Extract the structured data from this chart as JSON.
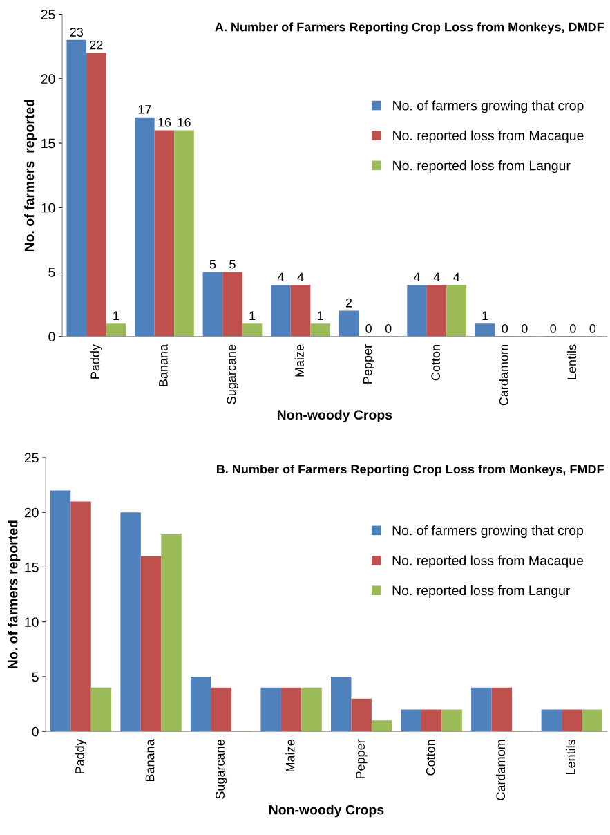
{
  "chart_data": [
    {
      "type": "bar",
      "title": "A. Number of Farmers Reporting Crop Loss from Monkeys, DMDF",
      "xlabel": "Non-woody Crops",
      "ylabel": "No. of farmers  reported",
      "categories": [
        "Paddy",
        "Banana",
        "Sugarcane",
        "Maize",
        "Pepper",
        "Cotton",
        "Cardamom",
        "Lentils"
      ],
      "series": [
        {
          "name": "No. of farmers growing that crop",
          "color": "#4f81bd",
          "values": [
            23,
            17,
            5,
            4,
            2,
            4,
            1,
            0
          ]
        },
        {
          "name": "No. reported loss from Macaque",
          "color": "#c0504d",
          "values": [
            22,
            16,
            5,
            4,
            0,
            4,
            0,
            0
          ]
        },
        {
          "name": "No. reported loss from Langur",
          "color": "#9bbb59",
          "values": [
            1,
            16,
            1,
            1,
            0,
            4,
            0,
            0
          ]
        }
      ],
      "ylim": [
        0,
        25
      ],
      "yticks": [
        0,
        5,
        10,
        15,
        20,
        25
      ],
      "data_labels": true,
      "legend": "right",
      "grid": false
    },
    {
      "type": "bar",
      "title": "B. Number of Farmers Reporting Crop Loss from Monkeys, FMDF",
      "xlabel": "Non-woody Crops",
      "ylabel": "No. of farmers reported",
      "categories": [
        "Paddy",
        "Banana",
        "Sugarcane",
        "Maize",
        "Pepper",
        "Cotton",
        "Cardamom",
        "Lentils"
      ],
      "series": [
        {
          "name": "No. of farmers growing that crop",
          "color": "#4f81bd",
          "values": [
            22,
            20,
            5,
            4,
            5,
            2,
            4,
            2
          ]
        },
        {
          "name": "No. reported loss from Macaque",
          "color": "#c0504d",
          "values": [
            21,
            16,
            4,
            4,
            3,
            2,
            4,
            2
          ]
        },
        {
          "name": "No. reported loss from Langur",
          "color": "#9bbb59",
          "values": [
            4,
            18,
            0,
            4,
            1,
            2,
            0,
            2
          ]
        }
      ],
      "ylim": [
        0,
        25
      ],
      "yticks": [
        0,
        5,
        10,
        15,
        20,
        25
      ],
      "legend": "right",
      "grid": false
    }
  ]
}
